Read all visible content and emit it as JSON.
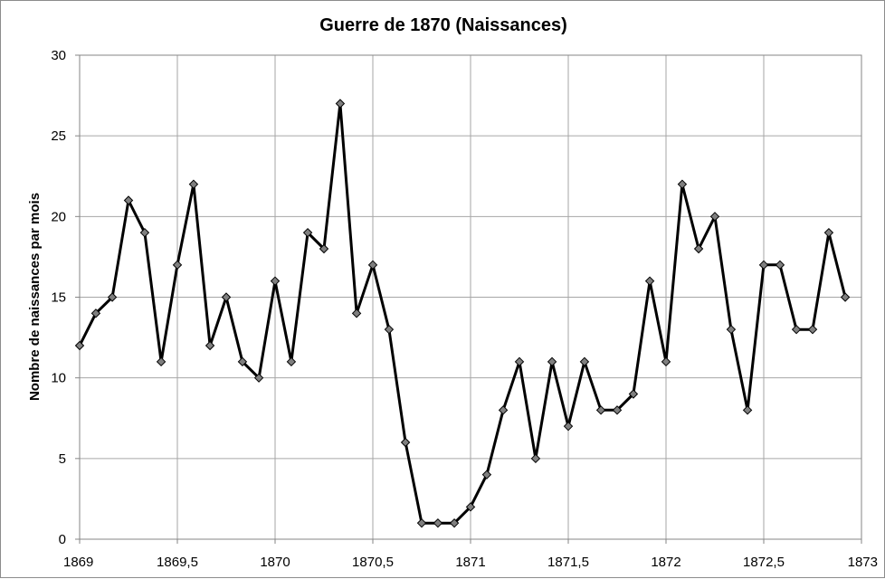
{
  "chart_data": {
    "type": "line",
    "title": "Guerre de 1870 (Naissances)",
    "xlabel": "",
    "ylabel": "Nombre de naissances par mois",
    "xlim": [
      1869,
      1873
    ],
    "ylim": [
      0,
      30
    ],
    "x_ticks": [
      1869,
      1869.5,
      1870,
      1870.5,
      1871,
      1871.5,
      1872,
      1872.5,
      1873
    ],
    "x_tick_labels": [
      "1869",
      "1869,5",
      "1870",
      "1870,5",
      "1871",
      "1871,5",
      "1872",
      "1872,5",
      "1873"
    ],
    "y_ticks": [
      0,
      5,
      10,
      15,
      20,
      25,
      30
    ],
    "y_tick_labels": [
      "0",
      "5",
      "10",
      "15",
      "20",
      "25",
      "30"
    ],
    "grid": true,
    "legend": "none",
    "line_color": "#000000",
    "marker_color": "#7f7f7f",
    "grid_color": "#a6a6a6",
    "series": [
      {
        "x": [
          1869.0,
          1869.083,
          1869.167,
          1869.25,
          1869.333,
          1869.417,
          1869.5,
          1869.583,
          1869.667,
          1869.75,
          1869.833,
          1869.917,
          1870.0,
          1870.083,
          1870.167,
          1870.25,
          1870.333,
          1870.417,
          1870.5,
          1870.583,
          1870.667,
          1870.75,
          1870.833,
          1870.917,
          1871.0,
          1871.083,
          1871.167,
          1871.25,
          1871.333,
          1871.417,
          1871.5,
          1871.583,
          1871.667,
          1871.75,
          1871.833,
          1871.917,
          1872.0,
          1872.083,
          1872.167,
          1872.25,
          1872.333,
          1872.417,
          1872.5,
          1872.583,
          1872.667,
          1872.75,
          1872.833,
          1872.917
        ],
        "values": [
          12,
          14,
          15,
          21,
          19,
          11,
          17,
          22,
          12,
          15,
          11,
          10,
          16,
          11,
          19,
          18,
          27,
          14,
          17,
          13,
          6,
          1,
          1,
          1,
          2,
          4,
          8,
          11,
          5,
          11,
          7,
          11,
          8,
          8,
          9,
          16,
          11,
          22,
          18,
          20,
          13,
          8,
          17,
          17,
          13,
          13,
          19,
          15
        ]
      }
    ]
  }
}
